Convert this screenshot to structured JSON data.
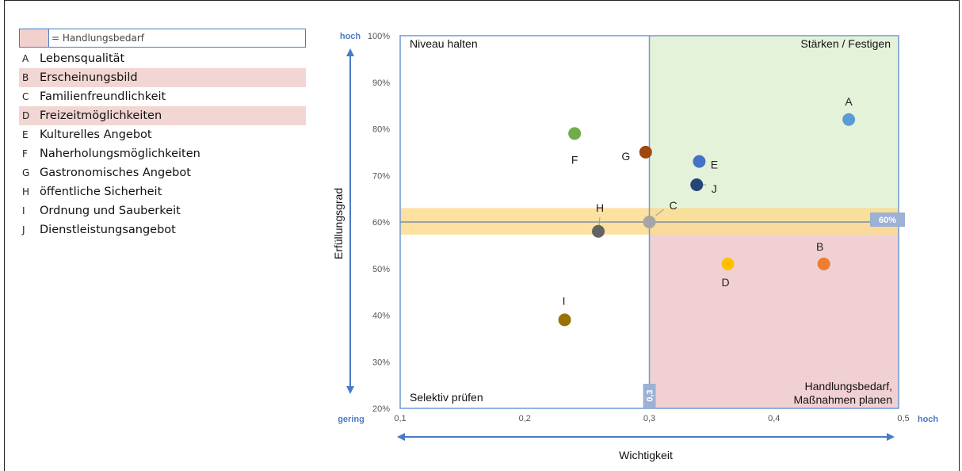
{
  "legend_panel": {
    "key_label": "= Handlungsbedarf",
    "items": [
      {
        "letter": "A",
        "label": "Lebensqualität",
        "highlight": false
      },
      {
        "letter": "B",
        "label": "Erscheinungsbild",
        "highlight": true
      },
      {
        "letter": "C",
        "label": "Familienfreundlichkeit",
        "highlight": false
      },
      {
        "letter": "D",
        "label": "Freizeitmöglichkeiten",
        "highlight": true
      },
      {
        "letter": "E",
        "label": "Kulturelles Angebot",
        "highlight": false
      },
      {
        "letter": "F",
        "label": "Naherholungsmöglichkeiten",
        "highlight": false
      },
      {
        "letter": "G",
        "label": "Gastronomisches Angebot",
        "highlight": false
      },
      {
        "letter": "H",
        "label": "öffentliche Sicherheit",
        "highlight": false
      },
      {
        "letter": "I",
        "label": "Ordnung und Sauberkeit",
        "highlight": false
      },
      {
        "letter": "J",
        "label": "Dienstleistungsangebot",
        "highlight": false
      }
    ]
  },
  "chart_data": {
    "type": "scatter",
    "xlabel": "Wichtigkeit",
    "ylabel": "Erfüllungsgrad",
    "xlim": [
      0.1,
      0.5
    ],
    "ylim": [
      20,
      100
    ],
    "x_ticks": [
      "0,1",
      "0,2",
      "0,3",
      "0,4",
      "0,5"
    ],
    "y_ticks": [
      "20%",
      "30%",
      "40%",
      "50%",
      "60%",
      "70%",
      "80%",
      "90%",
      "100%"
    ],
    "y_axis_ends": {
      "top": "hoch",
      "bottom": "gering"
    },
    "x_axis_end": "hoch",
    "threshold_x": 0.3,
    "threshold_x_label": "0,3",
    "threshold_y": 60,
    "threshold_y_label": "60%",
    "threshold_y_band": [
      57.3,
      63
    ],
    "quadrants": {
      "top_left": "Niveau halten",
      "top_right": "Stärken / Festigen",
      "bottom_left": "Selektiv prüfen",
      "bottom_right_line1": "Handlungsbedarf,",
      "bottom_right_line2": "Maßnahmen planen"
    },
    "colors": {
      "top_right_fill": "#e5f2da",
      "bottom_right_fill": "#f1d0d3",
      "band": "#fbdc8f",
      "frame": "#6f9ad6",
      "axis_accent": "#4a7bc8"
    },
    "points": [
      {
        "label": "A",
        "x": 0.46,
        "y": 82,
        "color": "#5b9bd5"
      },
      {
        "label": "B",
        "x": 0.44,
        "y": 51,
        "color": "#ed7d31"
      },
      {
        "label": "C",
        "x": 0.3,
        "y": 60,
        "color": "#a5a5a5"
      },
      {
        "label": "D",
        "x": 0.363,
        "y": 51,
        "color": "#ffc000"
      },
      {
        "label": "E",
        "x": 0.34,
        "y": 73,
        "color": "#4472c4"
      },
      {
        "label": "F",
        "x": 0.24,
        "y": 79,
        "color": "#70ad47"
      },
      {
        "label": "G",
        "x": 0.297,
        "y": 75,
        "color": "#9e480e"
      },
      {
        "label": "H",
        "x": 0.259,
        "y": 58,
        "color": "#636363"
      },
      {
        "label": "I",
        "x": 0.232,
        "y": 39,
        "color": "#997300"
      },
      {
        "label": "J",
        "x": 0.338,
        "y": 68,
        "color": "#264478"
      }
    ]
  }
}
